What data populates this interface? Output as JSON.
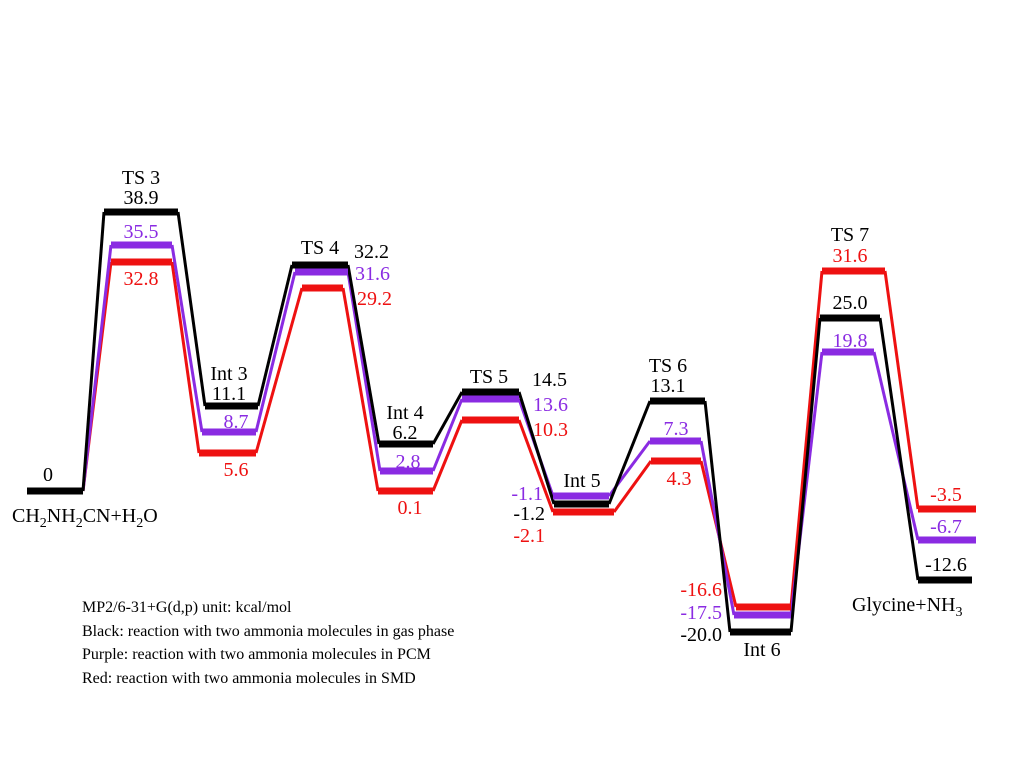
{
  "colors": {
    "gas": "#000000",
    "pcm": "#8A2BE2",
    "smd": "#EE1111"
  },
  "labels": {
    "reactants_value": "0",
    "ts3": "TS 3",
    "int3": "Int 3",
    "ts4": "TS 4",
    "int4": "Int 4",
    "ts5": "TS 5",
    "int5": "Int 5",
    "ts6": "TS 6",
    "int6": "Int 6",
    "ts7": "TS 7"
  },
  "reactants": {
    "base": "CH",
    "sub1": "2",
    "mid1": "NH",
    "sub2": "2",
    "mid2": "CN+H",
    "sub3": "2",
    "end": "O"
  },
  "products": {
    "base": "Glycine+NH",
    "sub": "3"
  },
  "values": {
    "gas": {
      "ts3": "38.9",
      "int3": "11.1",
      "ts4": "32.2",
      "int4": "6.2",
      "ts5": "14.5",
      "int5": "-1.2",
      "ts6": "13.1",
      "int6": "-20.0",
      "ts7": "25.0",
      "prod": "-12.6"
    },
    "pcm": {
      "ts3": "35.5",
      "int3": "8.7",
      "ts4": "31.6",
      "int4": "2.8",
      "ts5": "13.6",
      "int5": "-1.1",
      "ts6": "7.3",
      "int6": "-17.5",
      "ts7": "19.8",
      "prod": "-6.7"
    },
    "smd": {
      "ts3": "32.8",
      "int3": "5.6",
      "ts4": "29.2",
      "int4": "0.1",
      "ts5": "10.3",
      "int5": "-2.1",
      "ts6": "4.3",
      "int6": "-16.6",
      "ts7": "31.6",
      "prod": "-3.5"
    }
  },
  "notes": {
    "method": "MP2/6-31+G(d,p)  unit: kcal/mol",
    "black": "Black: reaction with two ammonia molecules in gas phase",
    "purple": "Purple: reaction with two ammonia molecules in PCM",
    "red": "Red: reaction with two ammonia molecules in SMD"
  }
}
